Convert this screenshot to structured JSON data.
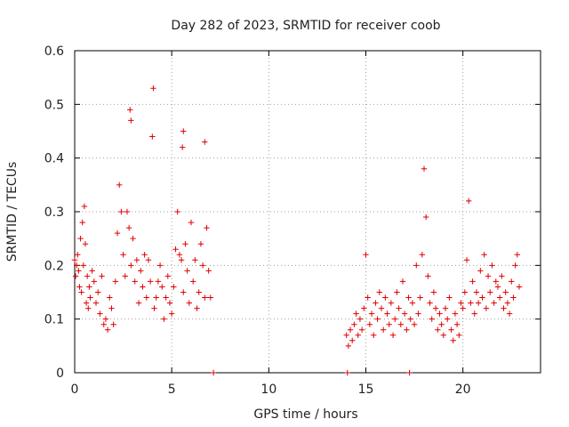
{
  "chart_data": {
    "type": "scatter",
    "title": "Day 282 of 2023, SRMTID for receiver coob",
    "xlabel": "GPS time / hours",
    "ylabel": "SRMTID / TECUs",
    "xlim": [
      0,
      24
    ],
    "ylim": [
      0,
      0.6
    ],
    "xticks": [
      0,
      5,
      10,
      15,
      20
    ],
    "yticks": [
      0,
      0.1,
      0.2,
      0.3,
      0.4,
      0.5,
      0.6
    ],
    "grid": true,
    "marker": "+",
    "color": "#e00000",
    "series": [
      {
        "name": "SRMTID",
        "x": [
          0.0,
          0.05,
          0.1,
          0.15,
          0.2,
          0.25,
          0.3,
          0.35,
          0.4,
          0.45,
          0.5,
          0.55,
          0.6,
          0.65,
          0.7,
          0.75,
          0.8,
          0.9,
          1.0,
          1.1,
          1.2,
          1.3,
          1.4,
          1.5,
          1.6,
          1.7,
          1.8,
          1.9,
          2.0,
          2.1,
          2.2,
          2.3,
          2.4,
          2.5,
          2.6,
          2.7,
          2.8,
          2.9,
          3.0,
          3.1,
          3.2,
          3.3,
          3.4,
          3.5,
          3.6,
          3.7,
          3.8,
          3.9,
          4.0,
          4.1,
          4.2,
          4.3,
          4.4,
          4.5,
          4.6,
          4.7,
          4.8,
          4.9,
          5.0,
          5.1,
          5.2,
          5.3,
          5.4,
          5.5,
          5.6,
          5.7,
          5.8,
          5.9,
          6.0,
          6.1,
          6.2,
          6.3,
          6.4,
          6.5,
          6.6,
          6.7,
          6.8,
          6.9,
          7.0,
          14.0,
          14.1,
          14.2,
          14.3,
          14.4,
          14.5,
          14.6,
          14.7,
          14.8,
          14.9,
          15.0,
          15.1,
          15.2,
          15.3,
          15.4,
          15.5,
          15.6,
          15.7,
          15.8,
          15.9,
          16.0,
          16.1,
          16.2,
          16.3,
          16.4,
          16.5,
          16.6,
          16.7,
          16.8,
          16.9,
          17.0,
          17.1,
          17.2,
          17.3,
          17.4,
          17.5,
          17.6,
          17.7,
          17.8,
          17.9,
          18.0,
          18.1,
          18.2,
          18.3,
          18.4,
          18.5,
          18.6,
          18.7,
          18.8,
          18.9,
          19.0,
          19.1,
          19.2,
          19.3,
          19.4,
          19.5,
          19.6,
          19.7,
          19.8,
          19.9,
          20.0,
          20.1,
          20.2,
          20.3,
          20.4,
          20.5,
          20.6,
          20.7,
          20.8,
          20.9,
          21.0,
          21.1,
          21.2,
          21.3,
          21.4,
          21.5,
          21.6,
          21.7,
          21.8,
          21.9,
          22.0,
          22.1,
          22.2,
          22.3,
          22.4,
          22.5,
          22.6,
          22.7,
          22.8,
          22.9,
          2.85,
          2.9,
          4.05,
          5.6,
          5.55,
          6.7,
          7.15,
          14.05,
          17.25
        ],
        "y": [
          0.21,
          0.18,
          0.2,
          0.22,
          0.19,
          0.16,
          0.25,
          0.15,
          0.28,
          0.2,
          0.31,
          0.24,
          0.13,
          0.18,
          0.12,
          0.16,
          0.14,
          0.19,
          0.17,
          0.13,
          0.15,
          0.11,
          0.18,
          0.09,
          0.1,
          0.08,
          0.14,
          0.12,
          0.09,
          0.17,
          0.26,
          0.35,
          0.3,
          0.22,
          0.18,
          0.3,
          0.27,
          0.2,
          0.25,
          0.17,
          0.21,
          0.13,
          0.19,
          0.16,
          0.22,
          0.14,
          0.21,
          0.17,
          0.44,
          0.12,
          0.14,
          0.17,
          0.2,
          0.16,
          0.1,
          0.14,
          0.18,
          0.13,
          0.11,
          0.16,
          0.23,
          0.3,
          0.22,
          0.21,
          0.15,
          0.24,
          0.19,
          0.13,
          0.28,
          0.17,
          0.21,
          0.12,
          0.15,
          0.24,
          0.2,
          0.14,
          0.27,
          0.19,
          0.14,
          0.07,
          0.05,
          0.08,
          0.06,
          0.09,
          0.11,
          0.07,
          0.1,
          0.08,
          0.12,
          0.22,
          0.14,
          0.09,
          0.11,
          0.07,
          0.13,
          0.1,
          0.15,
          0.12,
          0.08,
          0.14,
          0.11,
          0.09,
          0.13,
          0.07,
          0.1,
          0.15,
          0.12,
          0.09,
          0.17,
          0.11,
          0.08,
          0.14,
          0.1,
          0.13,
          0.09,
          0.2,
          0.11,
          0.14,
          0.22,
          0.38,
          0.29,
          0.18,
          0.13,
          0.1,
          0.15,
          0.12,
          0.08,
          0.11,
          0.09,
          0.07,
          0.12,
          0.1,
          0.14,
          0.08,
          0.06,
          0.11,
          0.09,
          0.07,
          0.13,
          0.12,
          0.15,
          0.21,
          0.32,
          0.13,
          0.17,
          0.11,
          0.15,
          0.13,
          0.19,
          0.14,
          0.22,
          0.12,
          0.18,
          0.15,
          0.2,
          0.13,
          0.17,
          0.16,
          0.14,
          0.18,
          0.12,
          0.15,
          0.13,
          0.11,
          0.17,
          0.14,
          0.2,
          0.22,
          0.16,
          0.49,
          0.47,
          0.53,
          0.45,
          0.42,
          0.43,
          0.0,
          0.0,
          0.0
        ]
      }
    ]
  }
}
